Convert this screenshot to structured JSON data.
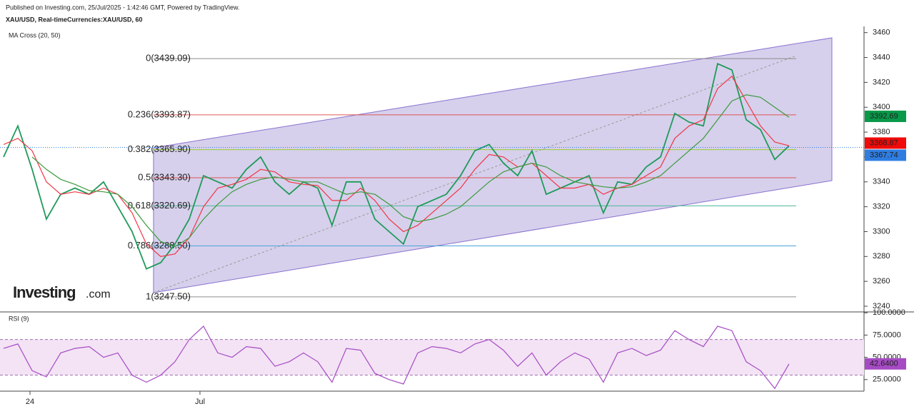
{
  "chart_data": [
    {
      "type": "line",
      "title": "XAU/USD, Real-timeCurrencies:XAU/USD, 60",
      "subtitle": "Published on Investing.com, 25/Jul/2025 - 1:42:46 GMT, Powered by TradingView.",
      "indicator": "MA Cross (20, 50)",
      "logo": [
        "Investing",
        ".com"
      ],
      "xlim": [
        -0.25,
        60.25
      ],
      "ylim": [
        3235,
        3465
      ],
      "yticks": [
        3240,
        3260,
        3280,
        3300,
        3320,
        3340,
        3360,
        3380,
        3400,
        3420,
        3440,
        3460
      ],
      "series": [
        {
          "color": "#1f9a5a",
          "values": [
            3360,
            3385,
            3350,
            3310,
            3330,
            3335,
            3330,
            3340,
            3320,
            3300,
            3270,
            3275,
            3290,
            3310,
            3345,
            3340,
            3335,
            3350,
            3360,
            3340,
            3330,
            3340,
            3335,
            3305,
            3340,
            3340,
            3310,
            3300,
            3290,
            3320,
            3325,
            3330,
            3345,
            3365,
            3370,
            3355,
            3345,
            3365,
            3330,
            3335,
            3340,
            3345,
            3315,
            3340,
            3338,
            3352,
            3360,
            3395,
            3388,
            3385,
            3435,
            3430,
            3390,
            3382,
            3358,
            3369
          ]
        },
        {
          "color": "#f23645",
          "values": [
            3370,
            3375,
            3365,
            3340,
            3330,
            3332,
            3330,
            3335,
            3330,
            3315,
            3290,
            3280,
            3282,
            3295,
            3320,
            3335,
            3338,
            3342,
            3350,
            3348,
            3340,
            3338,
            3337,
            3325,
            3325,
            3335,
            3325,
            3310,
            3300,
            3305,
            3315,
            3325,
            3335,
            3350,
            3362,
            3360,
            3352,
            3355,
            3345,
            3335,
            3335,
            3338,
            3330,
            3335,
            3338,
            3345,
            3352,
            3375,
            3385,
            3390,
            3415,
            3425,
            3405,
            3385,
            3372,
            3369
          ]
        },
        {
          "color": "#3c9a3c",
          "values": [
            null,
            null,
            3360,
            3350,
            3342,
            3338,
            3333,
            3332,
            3330,
            3320,
            3305,
            3292,
            3288,
            3295,
            3310,
            3322,
            3332,
            3338,
            3342,
            3344,
            3342,
            3340,
            3340,
            3335,
            3330,
            3332,
            3330,
            3322,
            3312,
            3308,
            3310,
            3314,
            3320,
            3330,
            3340,
            3348,
            3352,
            3355,
            3352,
            3345,
            3340,
            3338,
            3336,
            3335,
            3336,
            3340,
            3345,
            3355,
            3365,
            3375,
            3390,
            3405,
            3410,
            3408,
            3400,
            3392
          ]
        }
      ],
      "fib_levels": [
        {
          "label": "0(3439.09)",
          "value": 3439.09,
          "color": "#8c8c8c"
        },
        {
          "label": "0.236(3393.87)",
          "value": 3393.87,
          "color": "#e05555"
        },
        {
          "label": "0.382(3365.90)",
          "value": 3365.9,
          "color": "#9acd32"
        },
        {
          "label": "0.5(3343.30)",
          "value": 3343.3,
          "color": "#e05555"
        },
        {
          "label": "0.618(3320.69)",
          "value": 3320.69,
          "color": "#4cb89a"
        },
        {
          "label": "0.786(3288.50)",
          "value": 3288.5,
          "color": "#4aa3d8"
        },
        {
          "label": "1(3247.50)",
          "value": 3247.5,
          "color": "#8c8c8c"
        }
      ],
      "price_labels": [
        {
          "value": 3392.69,
          "color": "#089949"
        },
        {
          "value": 3368.87,
          "color": "#f00a0a"
        },
        {
          "value": 3367.74,
          "color": "#2f7de1"
        }
      ]
    },
    {
      "type": "line",
      "title": "RSI (9)",
      "xlim": [
        -0.25,
        60.25
      ],
      "ylim": [
        12,
        101
      ],
      "yticks": [
        {
          "value": 25,
          "label": "25.0000"
        },
        {
          "value": 50,
          "label": "50.0000"
        },
        {
          "value": 75,
          "label": "75.0000"
        },
        {
          "value": 100,
          "label": "100.0000"
        }
      ],
      "band": [
        30,
        70
      ],
      "xticks": [
        {
          "value": 1.85,
          "label": "24"
        },
        {
          "value": 13.75,
          "label": "Jul"
        }
      ],
      "series": [
        {
          "color": "#a64bc4",
          "values": [
            60,
            65,
            35,
            28,
            55,
            60,
            62,
            50,
            55,
            30,
            22,
            30,
            45,
            70,
            85,
            55,
            50,
            62,
            60,
            40,
            45,
            55,
            45,
            22,
            60,
            58,
            32,
            25,
            20,
            55,
            62,
            60,
            55,
            65,
            70,
            58,
            40,
            55,
            30,
            45,
            55,
            48,
            22,
            55,
            60,
            52,
            58,
            80,
            70,
            62,
            85,
            80,
            45,
            35,
            15,
            42.64
          ],
          "value_labels": [
            null,
            null,
            null,
            null,
            null,
            null,
            null,
            null,
            null,
            null,
            null,
            null,
            null,
            null,
            null,
            null,
            null,
            null,
            null,
            null,
            null,
            null,
            null,
            null,
            null,
            null,
            null,
            null,
            null,
            null,
            null,
            null,
            null,
            null,
            null,
            null,
            null,
            null,
            null,
            null,
            null,
            null,
            null,
            null,
            null,
            null,
            null,
            null,
            null,
            null,
            null,
            null,
            null,
            null,
            null,
            "42.6400"
          ]
        }
      ]
    }
  ]
}
